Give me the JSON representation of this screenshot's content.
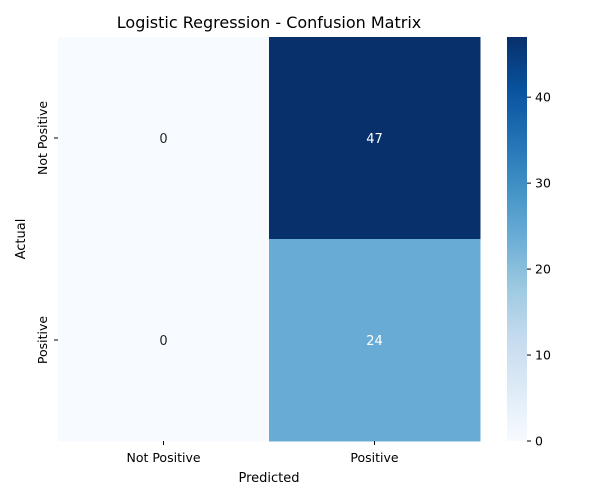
{
  "chart_data": {
    "type": "heatmap",
    "title": "Logistic Regression - Confusion Matrix",
    "xlabel": "Predicted",
    "ylabel": "Actual",
    "x_categories": [
      "Not Positive",
      "Positive"
    ],
    "y_categories": [
      "Not Positive",
      "Positive"
    ],
    "values": [
      [
        0,
        47
      ],
      [
        0,
        24
      ]
    ],
    "cell_labels": [
      [
        "0",
        "47"
      ],
      [
        "0",
        "24"
      ]
    ],
    "colormap": "Blues",
    "colorbar": {
      "min": 0,
      "max": 47,
      "ticks": [
        0,
        10,
        20,
        30,
        40
      ],
      "tick_labels": [
        "0",
        "10",
        "20",
        "30",
        "40"
      ],
      "placement": "right"
    },
    "colors": {
      "low": "#f7fbff",
      "high": "#08306b",
      "dark_text": "#262626",
      "light_text": "#ffffff"
    }
  }
}
